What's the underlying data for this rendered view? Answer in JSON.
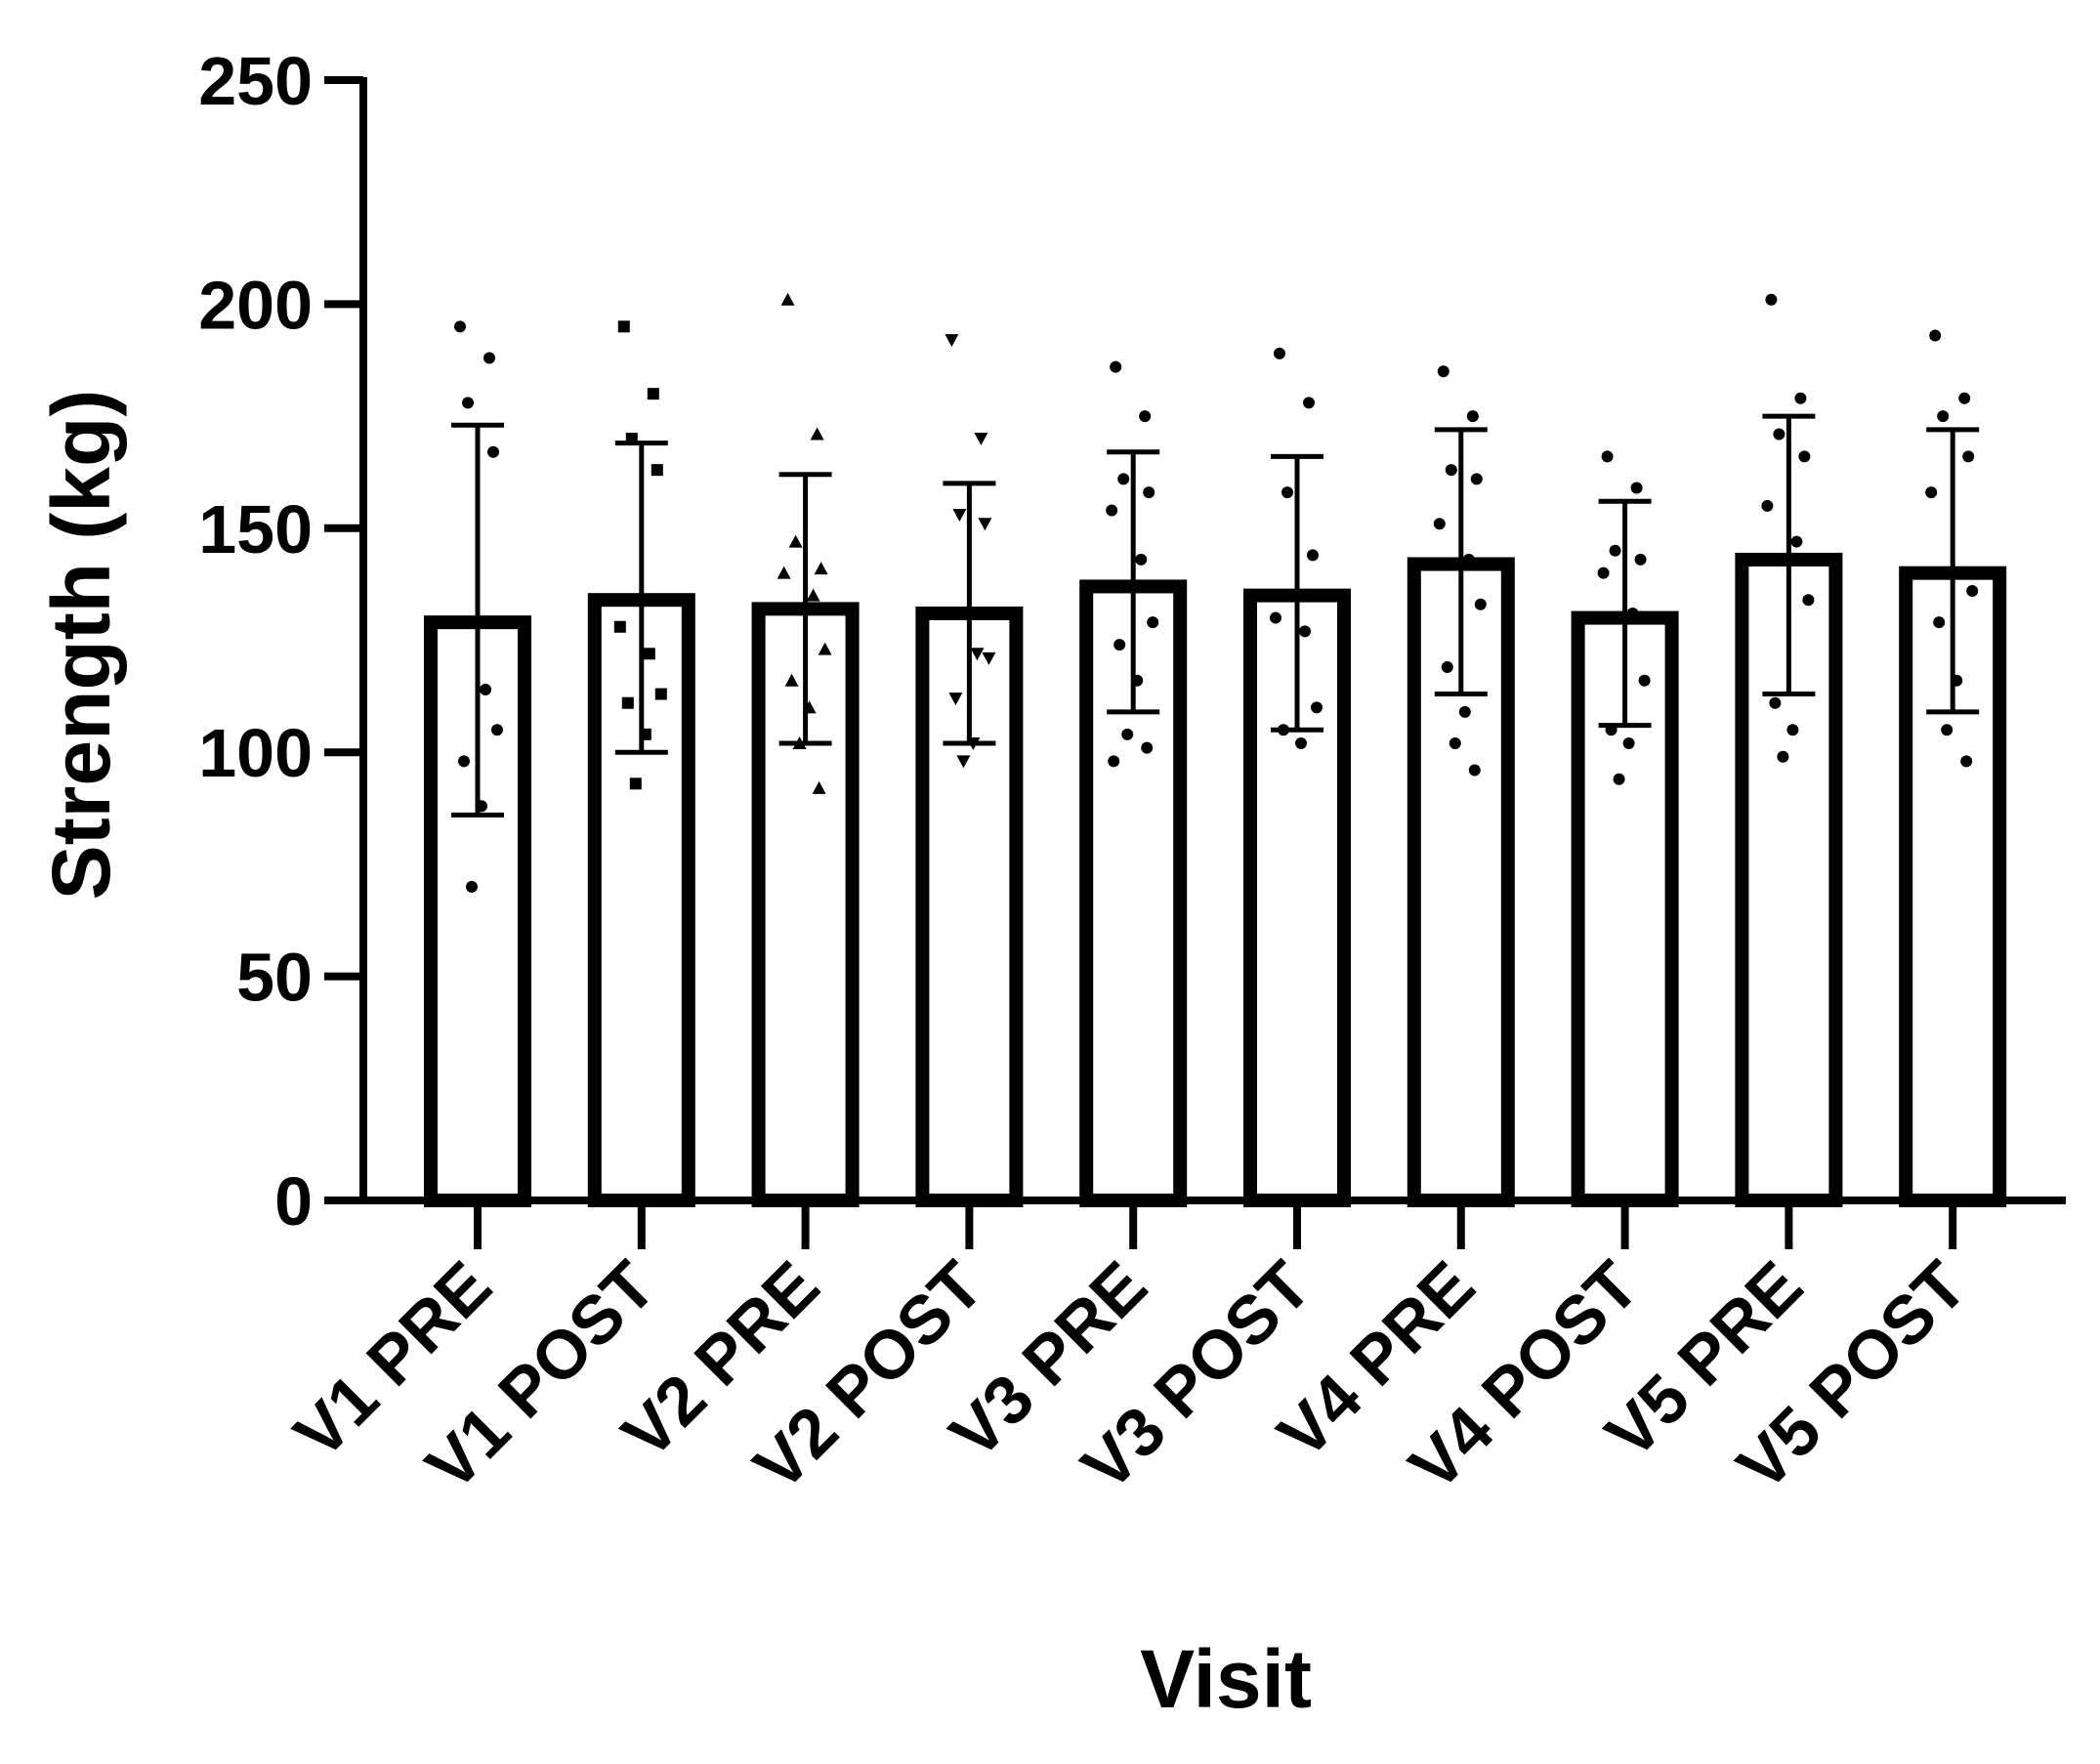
{
  "chart_data": {
    "type": "bar",
    "xlabel": "Visit",
    "ylabel": "Strength (kg)",
    "ylim": [
      0,
      250
    ],
    "yticks": [
      0,
      50,
      100,
      150,
      200,
      250
    ],
    "categories": [
      "V1 PRE",
      "V1 POST",
      "V2 PRE",
      "V2 POST",
      "V3 PRE",
      "V3 POST",
      "V4 PRE",
      "V4 POST",
      "V5 PRE",
      "V5 POST"
    ],
    "values": [
      129,
      134,
      132,
      131,
      137,
      135,
      142,
      130,
      143,
      140
    ],
    "error_upper": [
      173,
      169,
      162,
      160,
      167,
      166,
      172,
      156,
      175,
      172
    ],
    "error_lower": [
      86,
      100,
      102,
      102,
      109,
      105,
      113,
      106,
      113,
      109
    ],
    "markers": [
      "circle",
      "square",
      "triangle-up",
      "triangle-down",
      "circle",
      "circle",
      "circle",
      "circle",
      "circle",
      "circle"
    ],
    "points": [
      [
        195,
        188,
        178,
        167,
        129,
        114,
        105,
        98,
        88,
        70
      ],
      [
        195,
        180,
        170,
        163,
        128,
        122,
        113,
        111,
        104,
        93
      ],
      [
        201,
        171,
        147,
        141,
        140,
        135,
        123,
        116,
        110,
        102,
        92
      ],
      [
        192,
        170,
        153,
        151,
        131,
        122,
        121,
        112,
        102,
        98
      ],
      [
        186,
        175,
        161,
        158,
        154,
        143,
        129,
        124,
        116,
        104,
        101,
        98
      ],
      [
        189,
        178,
        158,
        144,
        130,
        127,
        110,
        105,
        102
      ],
      [
        185,
        175,
        163,
        161,
        151,
        143,
        133,
        119,
        109,
        102,
        96
      ],
      [
        166,
        159,
        145,
        143,
        140,
        131,
        116,
        105,
        102,
        94
      ],
      [
        201,
        179,
        171,
        166,
        155,
        147,
        134,
        111,
        105,
        99
      ],
      [
        193,
        179,
        175,
        166,
        158,
        140,
        136,
        129,
        116,
        105,
        98
      ]
    ],
    "grid": false,
    "legend": "none"
  }
}
